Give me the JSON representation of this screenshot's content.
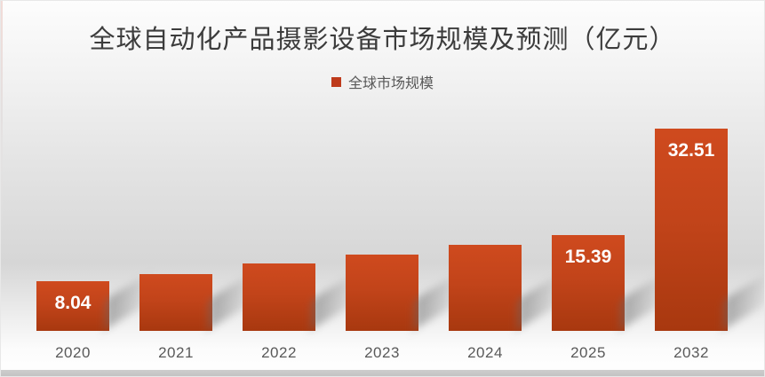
{
  "title": "全球自动化产品摄影设备市场规模及预测（亿元）",
  "legend": {
    "label": "全球市场规模",
    "swatch_color": "#be3a1b"
  },
  "colors": {
    "bar_top": "#cf4a1e",
    "bar_bottom": "#a8380f",
    "title_text": "#3c3c3c",
    "axis_text": "#595959",
    "value_label_text": "#ffffff"
  },
  "chart_data": {
    "type": "bar",
    "title": "全球自动化产品摄影设备市场规模及预测（亿元）",
    "series_name": "全球市场规模",
    "categories": [
      "2020",
      "2021",
      "2022",
      "2023",
      "2024",
      "2025",
      "2032"
    ],
    "values": [
      8.04,
      9.2,
      10.9,
      12.3,
      13.9,
      15.39,
      32.51
    ],
    "data_labels": [
      "8.04",
      "",
      "",
      "",
      "",
      "15.39",
      "32.51"
    ],
    "xlabel": "",
    "ylabel": "",
    "ylim": [
      0,
      34
    ],
    "grid": false,
    "y_axis_visible": false,
    "legend_position": "top-center"
  }
}
